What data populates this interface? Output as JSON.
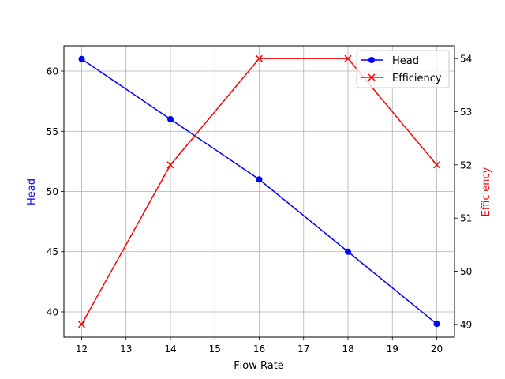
{
  "chart_data": {
    "type": "line",
    "title": "",
    "xlabel": "Flow Rate",
    "ylabel": "Head",
    "ylabel_right": "Efficiency",
    "x": [
      12,
      14,
      16,
      18,
      20
    ],
    "xlim": [
      11.6,
      20.4
    ],
    "xticks": [
      12,
      13,
      14,
      15,
      16,
      17,
      18,
      19,
      20
    ],
    "ylim": [
      37.9,
      62.1
    ],
    "yticks": [
      40,
      45,
      50,
      55,
      60
    ],
    "ylim_right": [
      48.76,
      54.24
    ],
    "yticks_right": [
      49,
      50,
      51,
      52,
      53,
      54
    ],
    "grid": true,
    "legend_position": "upper right",
    "series": [
      {
        "name": "Head",
        "axis": "left",
        "color": "#0000ff",
        "marker": "o",
        "values": [
          61,
          56,
          51,
          45,
          39
        ]
      },
      {
        "name": "Efficiency",
        "axis": "right",
        "color": "#ff0000",
        "marker": "x",
        "values": [
          49,
          52,
          54,
          54,
          52
        ]
      }
    ]
  },
  "legend": {
    "items": [
      {
        "label": "Head",
        "color": "#0000ff"
      },
      {
        "label": "Efficiency",
        "color": "#ff0000"
      }
    ]
  }
}
